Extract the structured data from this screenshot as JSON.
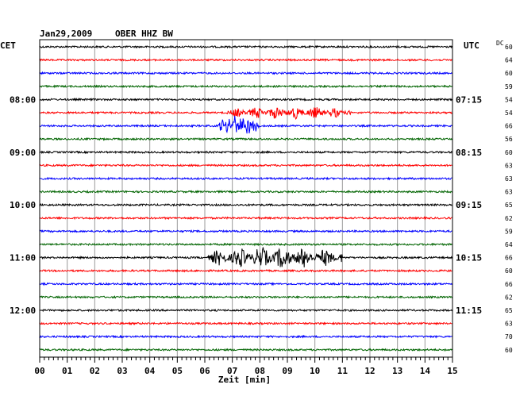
{
  "header": {
    "date": "Jan29,2009",
    "station": "OBER HHZ BW",
    "left_zone": "CET",
    "right_zone": "UTC",
    "dc_label": "DC"
  },
  "chart_data": {
    "type": "line",
    "xlabel": "Zeit [min]",
    "xlim": [
      0,
      15
    ],
    "x_ticks": [
      "00",
      "01",
      "02",
      "03",
      "04",
      "05",
      "06",
      "07",
      "08",
      "09",
      "10",
      "11",
      "12",
      "13",
      "14",
      "15"
    ],
    "colors": [
      "#000000",
      "#ff0000",
      "#0000ff",
      "#006400"
    ],
    "left_hour_labels": [
      {
        "trace": 4,
        "label": "08:00"
      },
      {
        "trace": 8,
        "label": "09:00"
      },
      {
        "trace": 12,
        "label": "10:00"
      },
      {
        "trace": 16,
        "label": "11:00"
      },
      {
        "trace": 20,
        "label": "12:00"
      }
    ],
    "right_hour_labels": [
      {
        "trace": 4,
        "label": "07:15"
      },
      {
        "trace": 8,
        "label": "08:15"
      },
      {
        "trace": 12,
        "label": "09:15"
      },
      {
        "trace": 16,
        "label": "10:15"
      },
      {
        "trace": 20,
        "label": "11:15"
      }
    ],
    "dc_values": [
      "60",
      "64",
      "60",
      "59",
      "54",
      "54",
      "66",
      "56",
      "60",
      "63",
      "63",
      "63",
      "65",
      "62",
      "59",
      "64",
      "66",
      "60",
      "66",
      "62",
      "65",
      "63",
      "70",
      "60"
    ],
    "events": [
      {
        "trace": 5,
        "start_min": 6.8,
        "end_min": 11.3,
        "amplitude": "moderate"
      },
      {
        "trace": 6,
        "start_min": 6.5,
        "end_min": 8.0,
        "amplitude": "large"
      },
      {
        "trace": 16,
        "start_min": 6.1,
        "end_min": 11.0,
        "amplitude": "large"
      }
    ]
  }
}
